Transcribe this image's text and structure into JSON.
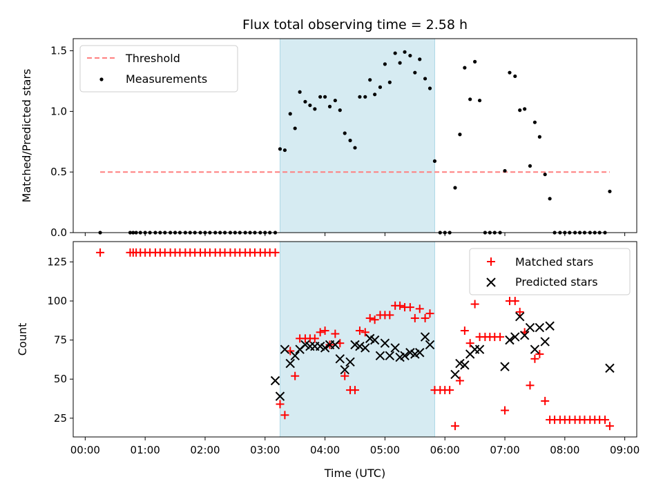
{
  "chart_data": [
    {
      "type": "scatter",
      "title": "Flux total observing time = 2.58 h",
      "xlabel": "",
      "ylabel": "Matched/Predicted stars",
      "xlim": [
        -0.2,
        9.2
      ],
      "ylim": [
        0,
        1.6
      ],
      "yticks": [
        0,
        0.5,
        1.0,
        1.5
      ],
      "ytick_labels": [
        "0.0",
        "0.5",
        "1.0",
        "1.5"
      ],
      "grid": false,
      "legend_position": "top-left",
      "shaded_span": {
        "x": [
          3.25,
          5.83
        ],
        "color": "#add8e6"
      },
      "threshold": {
        "name": "Threshold",
        "value": 0.5,
        "x": [
          0.25,
          8.75
        ],
        "color": "#ff7f7f"
      },
      "series": [
        {
          "name": "Measurements",
          "color": "#000000",
          "x": [
            0.25,
            0.75,
            0.8,
            0.85,
            0.92,
            1.0,
            1.08,
            1.17,
            1.25,
            1.33,
            1.42,
            1.5,
            1.58,
            1.67,
            1.75,
            1.83,
            1.92,
            2.0,
            2.08,
            2.17,
            2.25,
            2.33,
            2.42,
            2.5,
            2.58,
            2.67,
            2.75,
            2.83,
            2.92,
            3.0,
            3.08,
            3.17,
            3.25,
            3.33,
            3.42,
            3.5,
            3.58,
            3.67,
            3.75,
            3.83,
            3.92,
            4.0,
            4.08,
            4.17,
            4.25,
            4.33,
            4.42,
            4.5,
            4.58,
            4.67,
            4.75,
            4.83,
            4.92,
            5.0,
            5.08,
            5.17,
            5.25,
            5.33,
            5.42,
            5.5,
            5.58,
            5.67,
            5.75,
            5.83,
            5.92,
            6.0,
            6.08,
            6.17,
            6.25,
            6.33,
            6.42,
            6.5,
            6.58,
            6.67,
            6.75,
            6.83,
            6.92,
            7.0,
            7.08,
            7.17,
            7.25,
            7.33,
            7.42,
            7.5,
            7.58,
            7.67,
            7.75,
            7.83,
            7.92,
            8.0,
            8.08,
            8.17,
            8.25,
            8.33,
            8.42,
            8.5,
            8.58,
            8.67,
            8.75
          ],
          "y": [
            0,
            0,
            0,
            0,
            0,
            0,
            0,
            0,
            0,
            0,
            0,
            0,
            0,
            0,
            0,
            0,
            0,
            0,
            0,
            0,
            0,
            0,
            0,
            0,
            0,
            0,
            0,
            0,
            0,
            0,
            0,
            0,
            0.69,
            0.68,
            0.98,
            0.86,
            1.16,
            1.08,
            1.05,
            1.02,
            1.12,
            1.12,
            1.04,
            1.09,
            1.01,
            0.82,
            0.76,
            0.7,
            1.12,
            1.12,
            1.26,
            1.14,
            1.2,
            1.39,
            1.24,
            1.48,
            1.4,
            1.49,
            1.46,
            1.32,
            1.43,
            1.27,
            1.19,
            0.59,
            0,
            0,
            0,
            0.37,
            0.81,
            1.36,
            1.1,
            1.41,
            1.09,
            0,
            0,
            0,
            0,
            0.51,
            1.32,
            1.29,
            1.01,
            1.02,
            0.55,
            0.91,
            0.79,
            0.48,
            0.28,
            0,
            0,
            0,
            0,
            0,
            0,
            0,
            0,
            0,
            0,
            0,
            0.34
          ]
        }
      ]
    },
    {
      "type": "scatter",
      "title": "",
      "xlabel": "Time (UTC)",
      "ylabel": "Count",
      "xlim": [
        -0.2,
        9.2
      ],
      "ylim": [
        13,
        138
      ],
      "xticks": [
        0,
        1,
        2,
        3,
        4,
        5,
        6,
        7,
        8,
        9
      ],
      "xtick_labels": [
        "00:00",
        "01:00",
        "02:00",
        "03:00",
        "04:00",
        "05:00",
        "06:00",
        "07:00",
        "08:00",
        "09:00"
      ],
      "yticks": [
        25,
        50,
        75,
        100,
        125
      ],
      "ytick_labels": [
        "25",
        "50",
        "75",
        "100",
        "125"
      ],
      "grid": false,
      "legend_position": "top-right",
      "shaded_span": {
        "x": [
          3.25,
          5.83
        ],
        "color": "#add8e6"
      },
      "series": [
        {
          "name": "Matched stars",
          "marker": "plus",
          "color": "#ff0000",
          "x": [
            0.25,
            0.75,
            0.8,
            0.85,
            0.92,
            1.0,
            1.08,
            1.17,
            1.25,
            1.33,
            1.42,
            1.5,
            1.58,
            1.67,
            1.75,
            1.83,
            1.92,
            2.0,
            2.08,
            2.17,
            2.25,
            2.33,
            2.42,
            2.5,
            2.58,
            2.67,
            2.75,
            2.83,
            2.92,
            3.0,
            3.08,
            3.17,
            3.25,
            3.33,
            3.42,
            3.5,
            3.58,
            3.67,
            3.75,
            3.83,
            3.92,
            4.0,
            4.08,
            4.17,
            4.25,
            4.33,
            4.42,
            4.5,
            4.58,
            4.67,
            4.75,
            4.83,
            4.92,
            5.0,
            5.08,
            5.17,
            5.25,
            5.33,
            5.42,
            5.5,
            5.58,
            5.67,
            5.75,
            5.83,
            5.92,
            6.0,
            6.08,
            6.17,
            6.25,
            6.33,
            6.42,
            6.5,
            6.58,
            6.67,
            6.75,
            6.83,
            6.92,
            7.0,
            7.08,
            7.17,
            7.25,
            7.33,
            7.42,
            7.5,
            7.58,
            7.67,
            7.75,
            7.83,
            7.92,
            8.0,
            8.08,
            8.17,
            8.25,
            8.33,
            8.42,
            8.5,
            8.58,
            8.67,
            8.75
          ],
          "y": [
            131,
            131,
            131,
            131,
            131,
            131,
            131,
            131,
            131,
            131,
            131,
            131,
            131,
            131,
            131,
            131,
            131,
            131,
            131,
            131,
            131,
            131,
            131,
            131,
            131,
            131,
            131,
            131,
            131,
            131,
            131,
            131,
            34,
            27,
            68,
            52,
            76,
            76,
            76,
            76,
            80,
            81,
            72,
            79,
            73,
            52,
            43,
            43,
            81,
            80,
            89,
            88,
            91,
            91,
            91,
            97,
            97,
            96,
            96,
            89,
            95,
            89,
            92,
            43,
            43,
            43,
            43,
            20,
            49,
            81,
            73,
            98,
            77,
            77,
            77,
            77,
            77,
            30,
            100,
            100,
            93,
            80,
            46,
            63,
            66,
            36,
            24,
            24,
            24,
            24,
            24,
            24,
            24,
            24,
            24,
            24,
            24,
            24,
            20
          ]
        },
        {
          "name": "Predicted stars",
          "marker": "x",
          "color": "#000000",
          "x": [
            3.17,
            3.25,
            3.33,
            3.42,
            3.5,
            3.58,
            3.67,
            3.75,
            3.83,
            3.92,
            4.0,
            4.08,
            4.17,
            4.25,
            4.33,
            4.42,
            4.5,
            4.58,
            4.67,
            4.75,
            4.83,
            4.92,
            5.0,
            5.08,
            5.17,
            5.25,
            5.33,
            5.42,
            5.5,
            5.58,
            5.67,
            5.75,
            6.17,
            6.25,
            6.33,
            6.42,
            6.5,
            6.58,
            7.0,
            7.08,
            7.17,
            7.25,
            7.33,
            7.42,
            7.5,
            7.58,
            7.67,
            7.75,
            8.75
          ],
          "y": [
            49,
            39,
            69,
            60,
            65,
            69,
            72,
            71,
            71,
            71,
            70,
            72,
            72,
            63,
            56,
            61,
            72,
            71,
            70,
            76,
            75,
            65,
            73,
            65,
            70,
            64,
            65,
            67,
            66,
            67,
            77,
            72,
            53,
            60,
            59,
            66,
            69,
            69,
            58,
            75,
            77,
            90,
            78,
            83,
            69,
            83,
            74,
            84,
            57
          ]
        }
      ]
    }
  ]
}
